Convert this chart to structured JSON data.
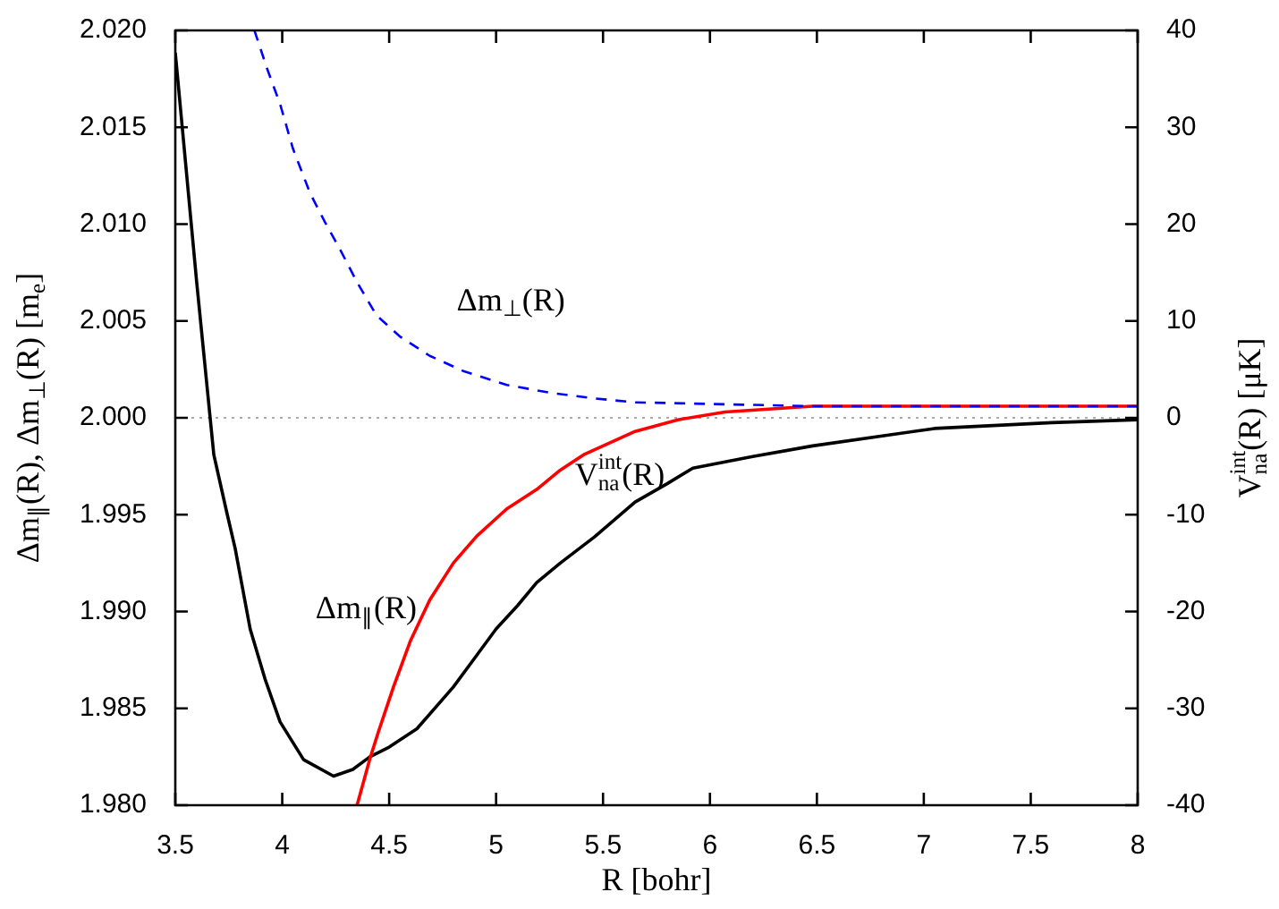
{
  "chart_data": {
    "type": "line",
    "xlabel": "R [bohr]",
    "ylabel": "Δm$_{∥}$(R), Δm$_{⊥}$(R) [m$_{e}$]",
    "y2label": "V$^{int}$$_{na}$(R) [μK]",
    "xlim": [
      3.5,
      8
    ],
    "xticks": [
      3.5,
      4,
      4.5,
      5,
      5.5,
      6,
      6.5,
      7,
      7.5,
      8
    ],
    "ylim": [
      1.98,
      2.02
    ],
    "yticks": [
      {
        "value": 1.98,
        "label": "1.980"
      },
      {
        "value": 1.985,
        "label": "1.985"
      },
      {
        "value": 1.99,
        "label": "1.990"
      },
      {
        "value": 1.995,
        "label": "1.995"
      },
      {
        "value": 2,
        "label": "2.000"
      },
      {
        "value": 2.005,
        "label": "2.005"
      },
      {
        "value": 2.01,
        "label": "2.010"
      },
      {
        "value": 2.015,
        "label": "2.015"
      },
      {
        "value": 2.02,
        "label": "2.020"
      }
    ],
    "y2lim": [
      -40,
      40
    ],
    "y2ticks": [
      -40,
      -30,
      -20,
      -10,
      0,
      10,
      20,
      30,
      40
    ],
    "grid": false,
    "legend": false,
    "marker": "none",
    "ref_lines": [
      {
        "axis": "y",
        "value": 2,
        "color": "#aaaaaa",
        "line_style": "dotted"
      }
    ],
    "series": [
      {
        "name": "Δm$_{⊥}$(R)",
        "color": "#0000ff",
        "line_style": "dashed",
        "x": [
          3.87,
          3.93,
          3.99,
          4.05,
          4.13,
          4.2,
          4.27,
          4.35,
          4.44,
          4.55,
          4.69,
          4.85,
          5.05,
          5.25,
          5.46,
          5.65,
          6.48,
          8
        ],
        "values": [
          2.02,
          2.018,
          2.0162,
          2.0139,
          2.0116,
          2.0101,
          2.0087,
          2.007,
          2.0053,
          2.0042,
          2.0032,
          2.0024,
          2.0017,
          2.0013,
          2.001,
          2.0008,
          2.0006,
          2.0006
        ]
      },
      {
        "name": "Δm$_{∥}$(R)",
        "color": "#ff0000",
        "line_style": "solid",
        "x": [
          4.35,
          4.41,
          4.45,
          4.52,
          4.6,
          4.69,
          4.8,
          4.91,
          5.05,
          5.19,
          5.3,
          5.41,
          5.65,
          5.85,
          6.07,
          6.48,
          8
        ],
        "values": [
          1.98,
          1.9824,
          1.9838,
          1.9861,
          1.9885,
          1.9906,
          1.9925,
          1.9939,
          1.9953,
          1.9963,
          1.9973,
          1.9981,
          1.9993,
          1.9999,
          2.0003,
          2.0006,
          2.0006
        ]
      },
      {
        "name": "V$^{int}$$_{na}$(R)",
        "color": "#000000",
        "line_style": "solid",
        "axis": "y2",
        "x": [
          3.5,
          3.6,
          3.68,
          3.74,
          3.78,
          3.85,
          3.92,
          3.99,
          4.1,
          4.24,
          4.33,
          4.41,
          4.5,
          4.63,
          4.8,
          4.9,
          5,
          5.1,
          5.19,
          5.3,
          5.46,
          5.65,
          5.8,
          5.92,
          6.2,
          6.48,
          7.05,
          7.6,
          8
        ],
        "values": [
          37.7,
          14,
          -3.8,
          -9.7,
          -13.5,
          -21.8,
          -27,
          -31.4,
          -35.3,
          -37,
          -36.3,
          -35,
          -34,
          -32.1,
          -27.8,
          -24.8,
          -21.8,
          -19.4,
          -17,
          -15,
          -12.3,
          -8.7,
          -6.8,
          -5.2,
          -4,
          -2.9,
          -1.1,
          -0.5,
          -0.2
        ]
      }
    ]
  }
}
